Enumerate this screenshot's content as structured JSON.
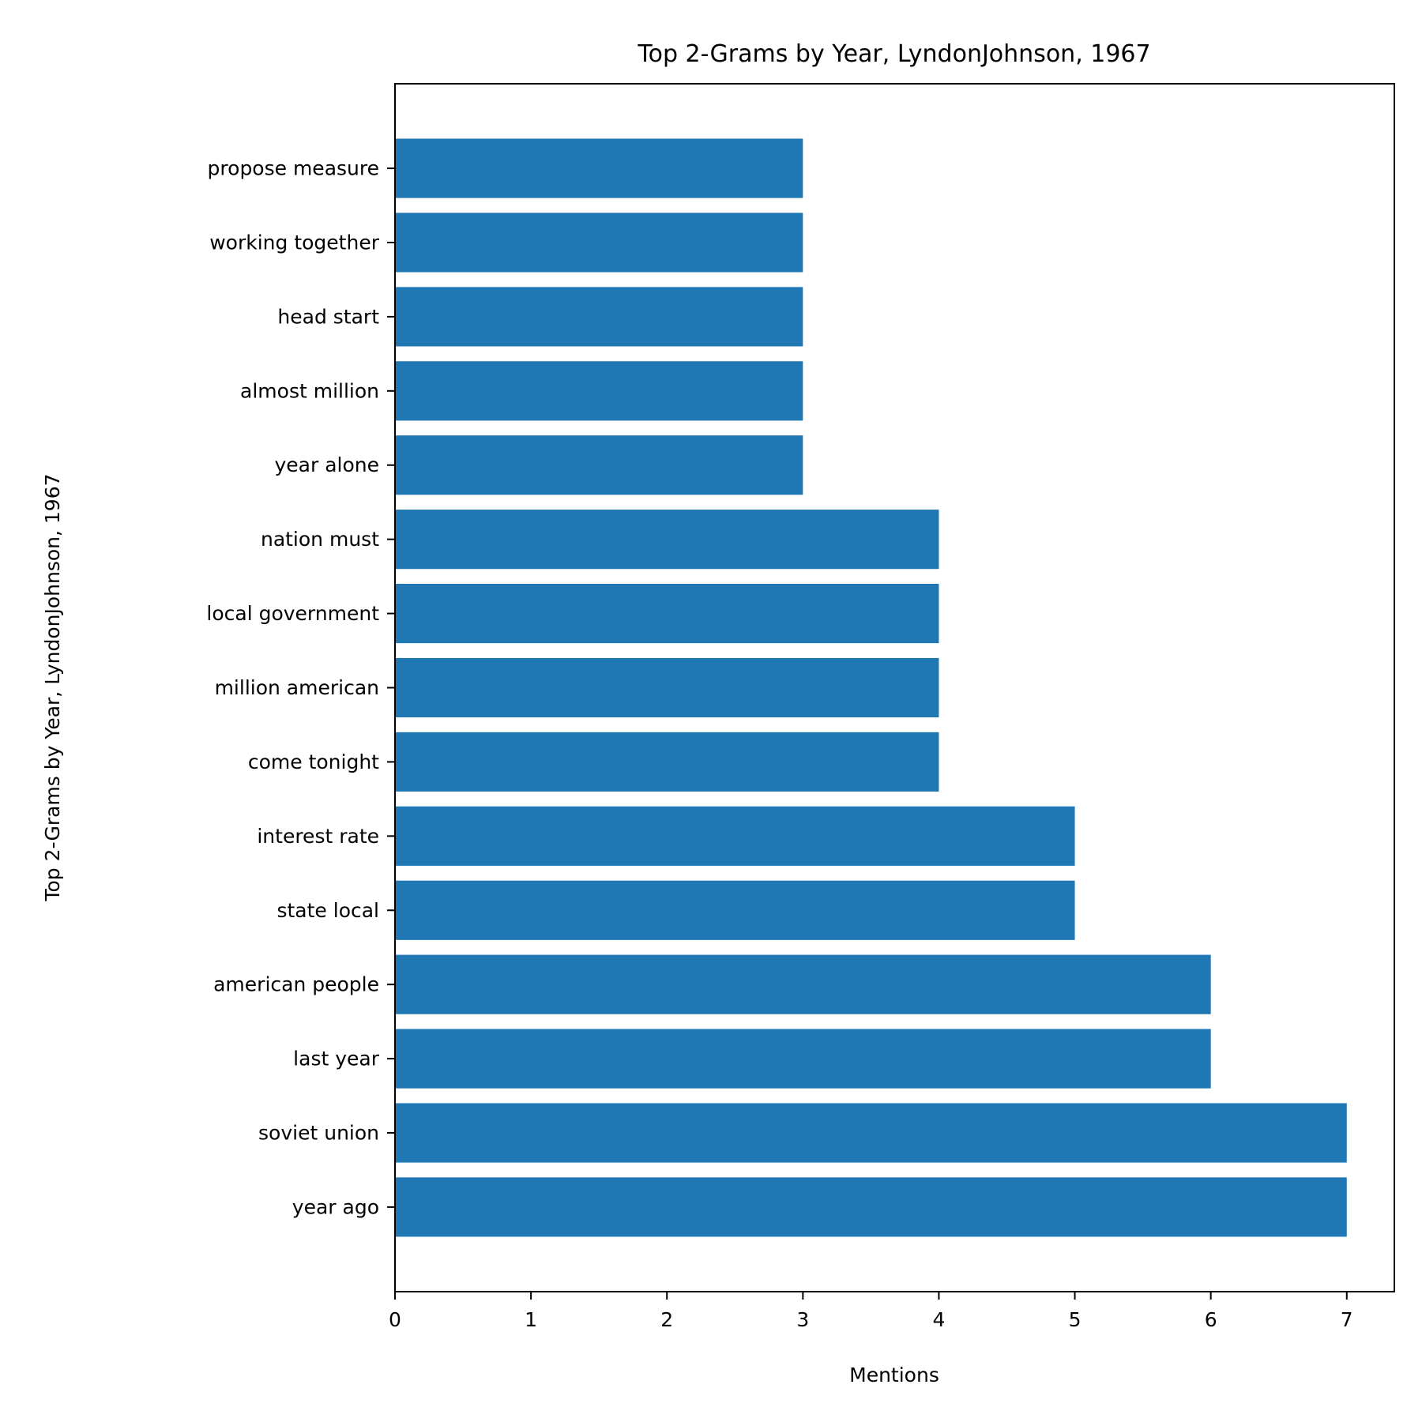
{
  "chart_data": {
    "type": "bar",
    "orientation": "horizontal",
    "title": "Top 2-Grams by Year, LyndonJohnson, 1967",
    "xlabel": "Mentions",
    "ylabel": "Top 2-Grams by Year, LyndonJohnson, 1967",
    "categories": [
      "year ago",
      "soviet union",
      "last year",
      "american people",
      "state local",
      "interest rate",
      "come tonight",
      "million american",
      "local government",
      "nation must",
      "year alone",
      "almost million",
      "head start",
      "working together",
      "propose measure"
    ],
    "values": [
      7,
      7,
      6,
      6,
      5,
      5,
      4,
      4,
      4,
      4,
      3,
      3,
      3,
      3,
      3
    ],
    "xticks": [
      "0",
      "1",
      "2",
      "3",
      "4",
      "5",
      "6",
      "7"
    ],
    "xlim": [
      0,
      7.35
    ],
    "grid": false,
    "bar_color": "#1f77b4"
  }
}
